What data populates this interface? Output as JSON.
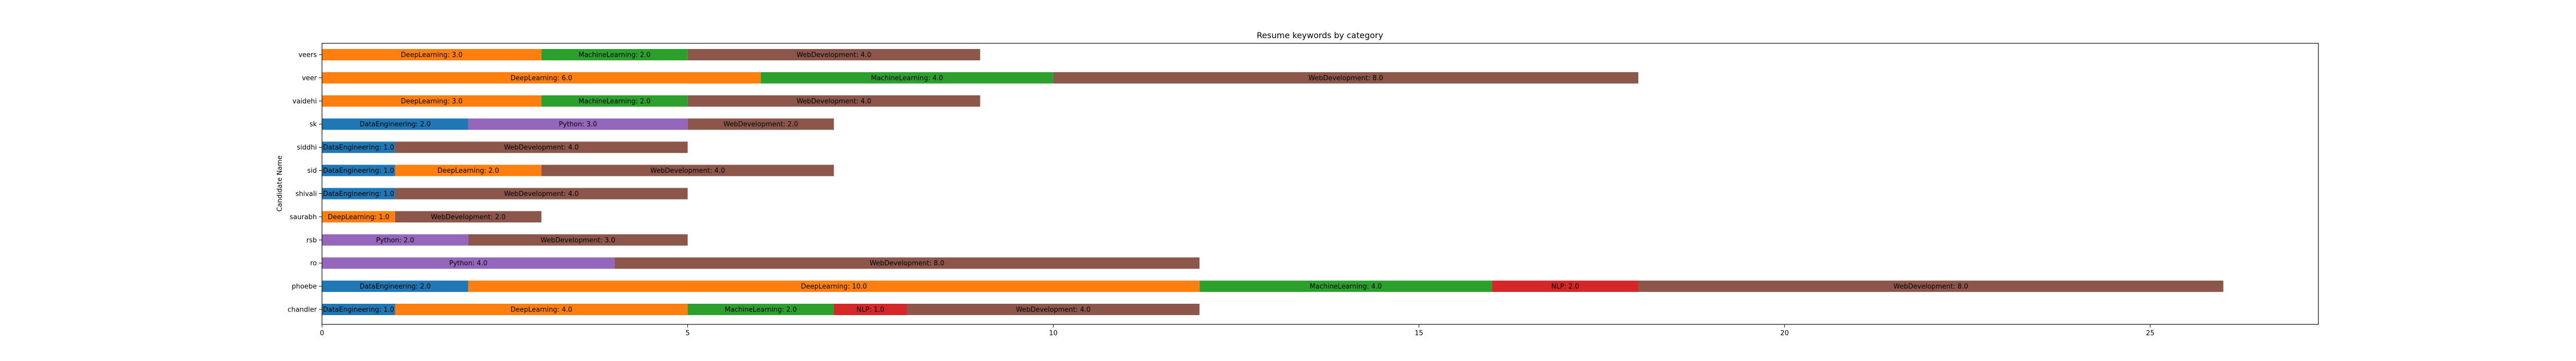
{
  "chart_data": {
    "type": "bar",
    "orientation": "horizontal",
    "stacked": true,
    "title": "Resume keywords by category",
    "xlabel": "",
    "ylabel": "Candidate Name",
    "xlim": [
      0,
      27.3
    ],
    "xticks": [
      0,
      5,
      10,
      15,
      20,
      25
    ],
    "grid": false,
    "categories": [
      "chandler",
      "phoebe",
      "ro",
      "rsb",
      "saurabh",
      "shivali",
      "sid",
      "siddhi",
      "sk",
      "vaidehi",
      "veer",
      "veers"
    ],
    "segments": [
      [
        {
          "keyword": "DataEngineering",
          "value": 1.0
        },
        {
          "keyword": "DeepLearning",
          "value": 4.0
        },
        {
          "keyword": "MachineLearning",
          "value": 2.0
        },
        {
          "keyword": "NLP",
          "value": 1.0
        },
        {
          "keyword": "WebDevelopment",
          "value": 4.0
        }
      ],
      [
        {
          "keyword": "DataEngineering",
          "value": 2.0
        },
        {
          "keyword": "DeepLearning",
          "value": 10.0
        },
        {
          "keyword": "MachineLearning",
          "value": 4.0
        },
        {
          "keyword": "NLP",
          "value": 2.0
        },
        {
          "keyword": "WebDevelopment",
          "value": 8.0
        }
      ],
      [
        {
          "keyword": "Python",
          "value": 4.0
        },
        {
          "keyword": "WebDevelopment",
          "value": 8.0
        }
      ],
      [
        {
          "keyword": "Python",
          "value": 2.0
        },
        {
          "keyword": "WebDevelopment",
          "value": 3.0
        }
      ],
      [
        {
          "keyword": "DeepLearning",
          "value": 1.0
        },
        {
          "keyword": "WebDevelopment",
          "value": 2.0
        }
      ],
      [
        {
          "keyword": "DataEngineering",
          "value": 1.0
        },
        {
          "keyword": "WebDevelopment",
          "value": 4.0
        }
      ],
      [
        {
          "keyword": "DataEngineering",
          "value": 1.0
        },
        {
          "keyword": "DeepLearning",
          "value": 2.0
        },
        {
          "keyword": "WebDevelopment",
          "value": 4.0
        }
      ],
      [
        {
          "keyword": "DataEngineering",
          "value": 1.0
        },
        {
          "keyword": "WebDevelopment",
          "value": 4.0
        }
      ],
      [
        {
          "keyword": "DataEngineering",
          "value": 2.0
        },
        {
          "keyword": "Python",
          "value": 3.0
        },
        {
          "keyword": "WebDevelopment",
          "value": 2.0
        }
      ],
      [
        {
          "keyword": "DeepLearning",
          "value": 3.0
        },
        {
          "keyword": "MachineLearning",
          "value": 2.0
        },
        {
          "keyword": "WebDevelopment",
          "value": 4.0
        }
      ],
      [
        {
          "keyword": "DeepLearning",
          "value": 6.0
        },
        {
          "keyword": "MachineLearning",
          "value": 4.0
        },
        {
          "keyword": "WebDevelopment",
          "value": 8.0
        }
      ],
      [
        {
          "keyword": "DeepLearning",
          "value": 3.0
        },
        {
          "keyword": "MachineLearning",
          "value": 2.0
        },
        {
          "keyword": "WebDevelopment",
          "value": 4.0
        }
      ]
    ],
    "colors": {
      "DataEngineering": "#1f77b4",
      "DeepLearning": "#ff7f0e",
      "MachineLearning": "#2ca02c",
      "NLP": "#d62728",
      "Python": "#9467bd",
      "WebDevelopment": "#8c564b"
    }
  }
}
